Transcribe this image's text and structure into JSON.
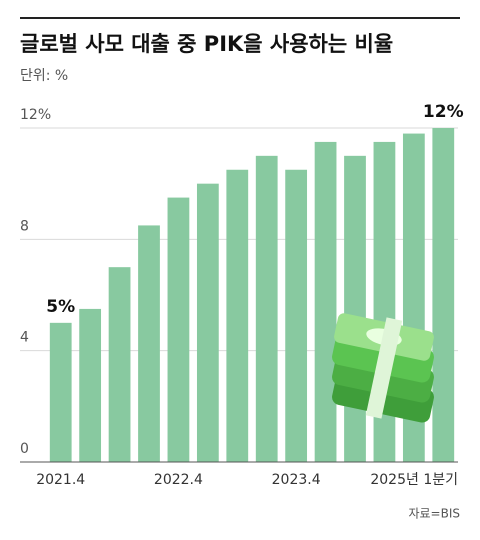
{
  "chart_data": {
    "type": "bar",
    "title": "글로벌 사모 대출 중 PIK을 사용하는 비율",
    "subtitle": "단위: %",
    "categories": [
      "2021.4",
      null,
      null,
      null,
      "2022.4",
      null,
      null,
      null,
      "2023.4",
      null,
      null,
      null,
      null,
      "2025년 1분기"
    ],
    "values": [
      5,
      5.5,
      7,
      8.5,
      9.5,
      10,
      10.5,
      11,
      10.5,
      11.5,
      11,
      11.5,
      11.8,
      12
    ],
    "value_labels": [
      "5%",
      null,
      null,
      null,
      null,
      null,
      null,
      null,
      null,
      null,
      null,
      null,
      null,
      "12%"
    ],
    "color": "#88c9a0",
    "ylim": [
      0,
      12
    ],
    "yticks": [
      0,
      4,
      8,
      {
        "value": 12,
        "label": "12%"
      }
    ],
    "grid": true,
    "source": "자료=BIS"
  }
}
